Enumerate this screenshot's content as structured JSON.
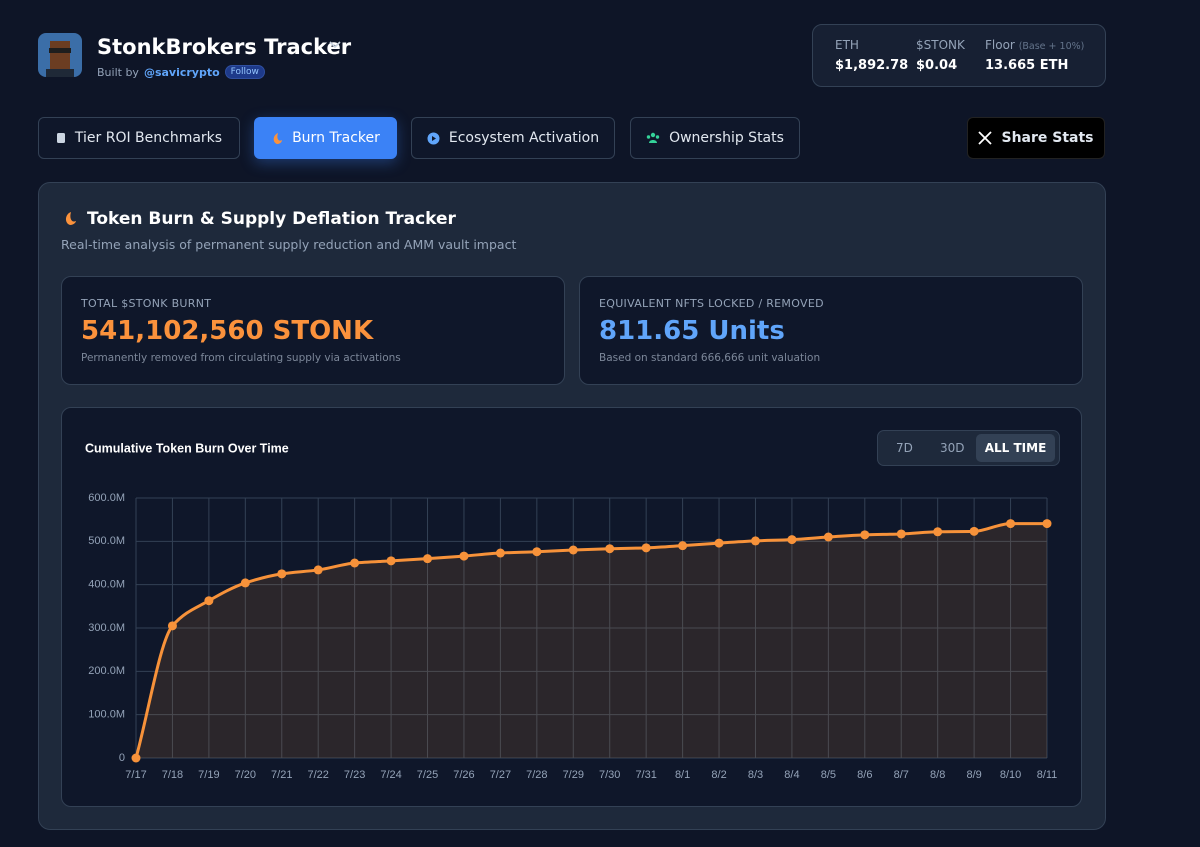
{
  "header": {
    "title": "StonkBrokers Tracker",
    "built_by": "Built by",
    "handle": "@savicrypto",
    "follow": "Follow"
  },
  "prices": [
    {
      "label": "ETH",
      "value": "$1,892.78"
    },
    {
      "label": "$STONK",
      "value": "$0.04"
    },
    {
      "label": "Floor",
      "note": "(Base + 10%)",
      "value": "13.665 ETH"
    }
  ],
  "tabs": [
    "Tier ROI Benchmarks",
    "Burn Tracker",
    "Ecosystem Activation",
    "Ownership Stats"
  ],
  "share": "Share Stats",
  "panel": {
    "title": "Token Burn & Supply Deflation Tracker",
    "subtitle": "Real-time analysis of permanent supply reduction and AMM vault impact"
  },
  "cards": [
    {
      "label": "TOTAL $STONK BURNT",
      "value": "541,102,560 STONK",
      "note": "Permanently removed from circulating supply via activations"
    },
    {
      "label": "EQUIVALENT NFTS LOCKED / REMOVED",
      "value": "811.65 Units",
      "note": "Based on standard 666,666 unit valuation"
    }
  ],
  "range_buttons": [
    "7D",
    "30D",
    "ALL TIME"
  ],
  "chart_data": {
    "type": "line",
    "title": "Cumulative Token Burn Over Time",
    "categories": [
      "7/17",
      "7/18",
      "7/19",
      "7/20",
      "7/21",
      "7/22",
      "7/23",
      "7/24",
      "7/25",
      "7/26",
      "7/27",
      "7/28",
      "7/29",
      "7/30",
      "7/31",
      "8/1",
      "8/2",
      "8/3",
      "8/4",
      "8/5",
      "8/6",
      "8/7",
      "8/8",
      "8/9",
      "8/10",
      "8/11"
    ],
    "values": [
      0,
      305,
      363,
      404,
      425,
      434,
      450,
      455,
      460,
      466,
      473,
      476,
      480,
      483,
      485,
      490,
      496,
      501,
      504,
      510,
      515,
      517,
      522,
      523,
      541,
      541
    ],
    "color": "#f7923a",
    "ylim": [
      0,
      600
    ],
    "yticks": [
      0,
      {
        "value": 100,
        "label": "100.0M"
      },
      {
        "value": 200,
        "label": "200.0M"
      },
      {
        "value": 300,
        "label": "300.0M"
      },
      {
        "value": 400,
        "label": "400.0M"
      },
      {
        "value": 500,
        "label": "500.0M"
      },
      {
        "value": 600,
        "label": "600.0M"
      }
    ],
    "grid": true
  }
}
